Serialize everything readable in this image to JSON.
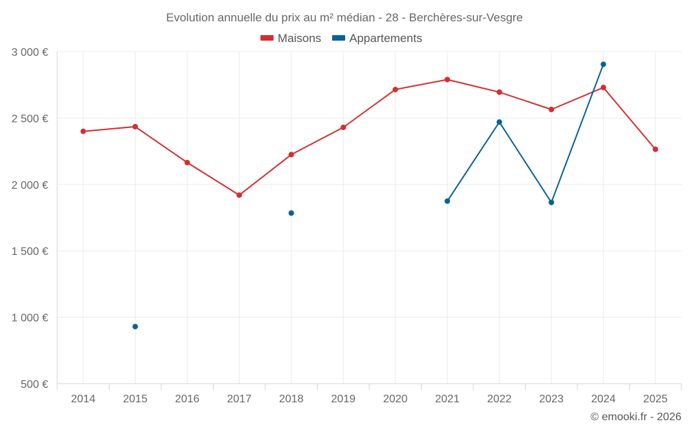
{
  "chart_data": {
    "type": "line",
    "title": "Evolution annuelle du prix au m² médian - 28 - Berchères-sur-Vesgre",
    "categories": [
      "2014",
      "2015",
      "2016",
      "2017",
      "2018",
      "2019",
      "2020",
      "2021",
      "2022",
      "2023",
      "2024",
      "2025"
    ],
    "ylim": [
      500,
      3000
    ],
    "yticks": [
      500,
      1000,
      1500,
      2000,
      2500,
      3000
    ],
    "ytick_labels": [
      "500 €",
      "1 000 €",
      "1 500 €",
      "2 000 €",
      "2 500 €",
      "3 000 €"
    ],
    "grid": true,
    "legend_position": "top-center",
    "series": [
      {
        "name": "Maisons",
        "color": "#d32f2f",
        "values": [
          2400,
          2435,
          2165,
          1920,
          2225,
          2430,
          2715,
          2790,
          2695,
          2565,
          2730,
          2265
        ]
      },
      {
        "name": "Appartements",
        "color": "#0a6199",
        "values": [
          null,
          930,
          null,
          null,
          1785,
          null,
          null,
          1875,
          2470,
          1865,
          2905,
          null
        ]
      }
    ],
    "credit": "© emooki.fr - 2026"
  }
}
